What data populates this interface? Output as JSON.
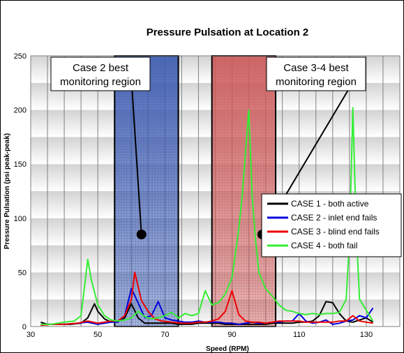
{
  "chart_data": {
    "type": "line",
    "title": "Pressure Pulsation at Location 2",
    "xlabel": "Speed (RPM)",
    "ylabel": "Pressure Pulsation (psi peak-peak)",
    "xlim": [
      30,
      140
    ],
    "ylim": [
      0,
      250
    ],
    "xticks": [
      30,
      50,
      70,
      90,
      110,
      130
    ],
    "yticks": [
      0,
      50,
      100,
      150,
      200,
      250
    ],
    "grid": "vertical lines every 5 RPM, horizontal bands every 25 psi",
    "legend_position": "right",
    "regions": [
      {
        "label_line1": "Case 2 best",
        "label_line2": "monitoring region",
        "x_start": 55,
        "x_end": 74,
        "color": "#3d5bb0",
        "callout_point": [
          63,
          85
        ]
      },
      {
        "label_line1": "Case 3-4 best",
        "label_line2": "monitoring region",
        "x_start": 84,
        "x_end": 103,
        "color": "#cc5a5a",
        "callout_point": [
          99,
          85
        ]
      }
    ],
    "series": [
      {
        "name": "CASE 1 - both active",
        "color": "#000000",
        "x": [
          33,
          35,
          38,
          42,
          45,
          47,
          49,
          50,
          52,
          54,
          56,
          58,
          60,
          62,
          64,
          66,
          68,
          70,
          72,
          74,
          76,
          78,
          80,
          82,
          84,
          86,
          88,
          90,
          92,
          94,
          96,
          98,
          100,
          102,
          104,
          106,
          108,
          110,
          112,
          114,
          116,
          118,
          120,
          122,
          124,
          126,
          128,
          130,
          132
        ],
        "y": [
          4,
          2,
          2,
          2,
          3,
          8,
          21,
          14,
          7,
          4,
          5,
          8,
          21,
          8,
          3,
          3,
          3,
          3,
          3,
          2,
          2,
          2,
          3,
          3,
          3,
          3,
          2,
          2,
          2,
          2,
          2,
          2,
          2,
          3,
          3,
          3,
          3,
          4,
          4,
          5,
          10,
          23,
          22,
          12,
          5,
          4,
          6,
          8,
          4
        ]
      },
      {
        "name": "CASE 2 - inlet end fails",
        "color": "#0000dd",
        "x": [
          33,
          36,
          40,
          44,
          47,
          50,
          52,
          54,
          56,
          58,
          60,
          62,
          64,
          66,
          68,
          70,
          72,
          74,
          76,
          78,
          80,
          82,
          84,
          86,
          88,
          90,
          92,
          94,
          96,
          98,
          100,
          102,
          104,
          106,
          108,
          110,
          112,
          114,
          116,
          118,
          120,
          122,
          124,
          126,
          128,
          130,
          132
        ],
        "y": [
          2,
          2,
          2,
          3,
          4,
          2,
          3,
          4,
          4,
          10,
          35,
          22,
          8,
          10,
          23,
          8,
          6,
          5,
          4,
          4,
          5,
          4,
          4,
          4,
          3,
          3,
          2,
          3,
          4,
          3,
          3,
          4,
          4,
          5,
          5,
          12,
          5,
          3,
          4,
          6,
          2,
          3,
          5,
          6,
          10,
          8,
          17
        ]
      },
      {
        "name": "CASE 3 - blind end fails",
        "color": "#ee0000",
        "x": [
          33,
          36,
          40,
          44,
          47,
          50,
          52,
          54,
          56,
          58,
          60,
          61,
          63,
          65,
          67,
          69,
          72,
          75,
          78,
          80,
          82,
          84,
          86,
          88,
          90,
          92,
          94,
          96,
          98,
          100,
          102,
          104,
          106,
          108,
          110,
          112,
          114,
          116,
          118,
          120,
          122,
          124,
          126,
          128,
          130,
          132
        ],
        "y": [
          1,
          2,
          2,
          3,
          5,
          3,
          4,
          5,
          5,
          10,
          25,
          50,
          24,
          14,
          7,
          5,
          4,
          3,
          3,
          4,
          4,
          5,
          7,
          14,
          33,
          11,
          5,
          4,
          4,
          3,
          4,
          5,
          5,
          5,
          5,
          4,
          4,
          4,
          4,
          4,
          5,
          5,
          10,
          5,
          4,
          3
        ]
      },
      {
        "name": "CASE 4 - both fail",
        "color": "#33ee33",
        "x": [
          33,
          36,
          40,
          43,
          45,
          47,
          48,
          50,
          52,
          54,
          56,
          58,
          60,
          62,
          64,
          66,
          68,
          70,
          72,
          74,
          76,
          78,
          80,
          82,
          84,
          86,
          88,
          90,
          92,
          93,
          94,
          95,
          96,
          97,
          98,
          100,
          102,
          104,
          106,
          108,
          110,
          112,
          114,
          116,
          118,
          120,
          122,
          124,
          125,
          126,
          127,
          128,
          130,
          132
        ],
        "y": [
          2,
          2,
          4,
          5,
          10,
          62,
          44,
          20,
          10,
          6,
          5,
          6,
          8,
          14,
          9,
          7,
          8,
          10,
          13,
          8,
          12,
          10,
          12,
          33,
          20,
          22,
          30,
          45,
          90,
          120,
          160,
          200,
          120,
          80,
          50,
          35,
          28,
          20,
          15,
          14,
          12,
          11,
          12,
          11,
          12,
          12,
          13,
          25,
          80,
          202,
          90,
          25,
          15,
          5
        ]
      }
    ]
  }
}
